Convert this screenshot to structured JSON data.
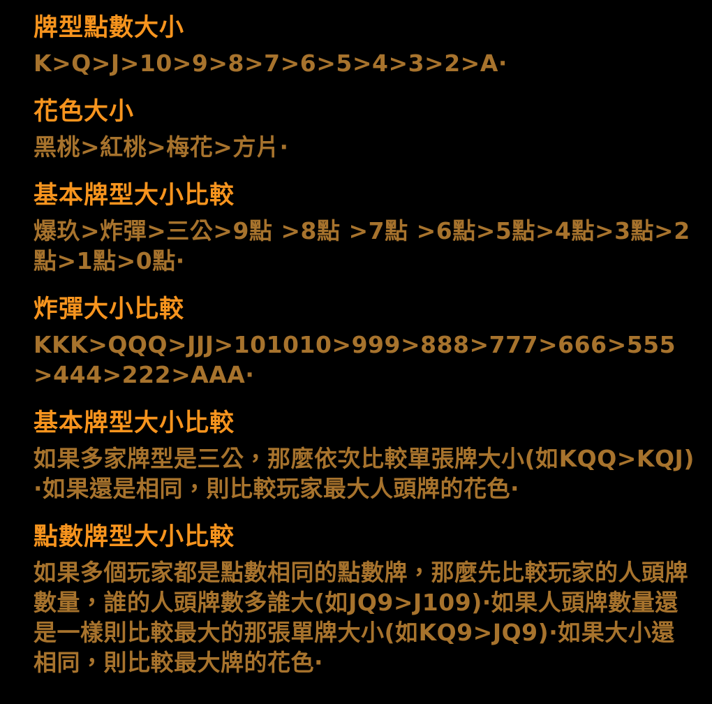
{
  "page": {
    "background_color": "#000000",
    "heading_color": "#F7941E",
    "body_color": "#A7732D"
  },
  "sections": [
    {
      "heading": "牌型點數大小",
      "body": "K>Q>J>10>9>8>7>6>5>4>3>2>A·"
    },
    {
      "heading": "花色大小",
      "body": "黑桃>紅桃>梅花>方片·"
    },
    {
      "heading": "基本牌型大小比較",
      "body": "爆玖>炸彈>三公>9點 >8點 >7點 >6點>5點>4點>3點>2點>1點>0點·"
    },
    {
      "heading": "炸彈大小比較",
      "body": "KKK>QQQ>JJJ>101010>999>888>777>666>555>444>222>AAA·"
    },
    {
      "heading": "基本牌型大小比較",
      "body": "如果多家牌型是三公，那麼依次比較單張牌大小(如KQQ>KQJ)·如果還是相同，則比較玩家最大人頭牌的花色·"
    },
    {
      "heading": "點數牌型大小比較",
      "body": "如果多個玩家都是點數相同的點數牌，那麼先比較玩家的人頭牌數量，誰的人頭牌數多誰大(如JQ9>J109)·如果人頭牌數量還是一樣則比較最大的那張單牌大小(如KQ9>JQ9)·如果大小還相同，則比較最大牌的花色·"
    }
  ]
}
